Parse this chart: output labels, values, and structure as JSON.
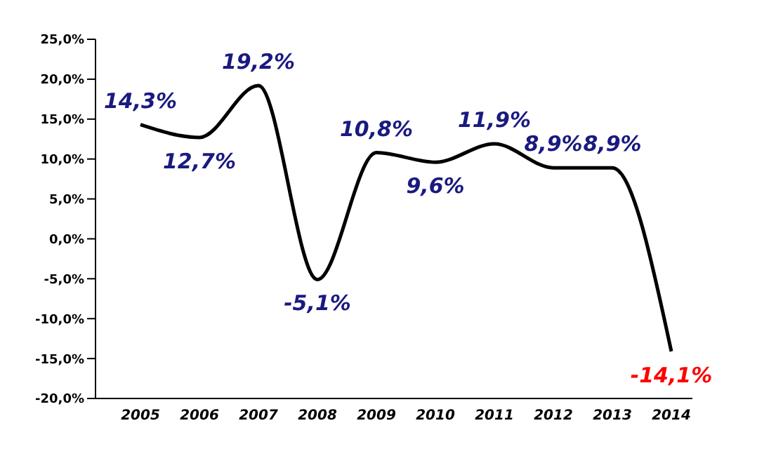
{
  "chart_data": {
    "type": "line",
    "categories": [
      "2005",
      "2006",
      "2007",
      "2008",
      "2009",
      "2010",
      "2011",
      "2012",
      "2013",
      "2014"
    ],
    "series": [
      {
        "color": "#000000",
        "values": [
          14.3,
          12.7,
          19.2,
          -5.1,
          10.8,
          9.6,
          11.9,
          8.9,
          8.9,
          -14.1
        ],
        "value_labels": [
          "14,3%",
          "12,7%",
          "19,2%",
          "-5,1%",
          "10,8%",
          "9,6%",
          "11,9%",
          "8,9%",
          "8,9%",
          "-14,1%"
        ]
      }
    ],
    "ylim": [
      -20,
      25
    ],
    "yticks": [
      {
        "value": -20,
        "label": "-20,0%"
      },
      {
        "value": -15,
        "label": "-15,0%"
      },
      {
        "value": -10,
        "label": "-10,0%"
      },
      {
        "value": -5,
        "label": "-5,0%"
      },
      {
        "value": 0,
        "label": "0,0%"
      },
      {
        "value": 5,
        "label": "5,0%"
      },
      {
        "value": 10,
        "label": "10,0%"
      },
      {
        "value": 15,
        "label": "15,0%"
      },
      {
        "value": 20,
        "label": "20,0%"
      },
      {
        "value": 25,
        "label": "25,0%"
      }
    ],
    "grid": false,
    "legend": false,
    "marker": "none",
    "line_style": "solid"
  }
}
